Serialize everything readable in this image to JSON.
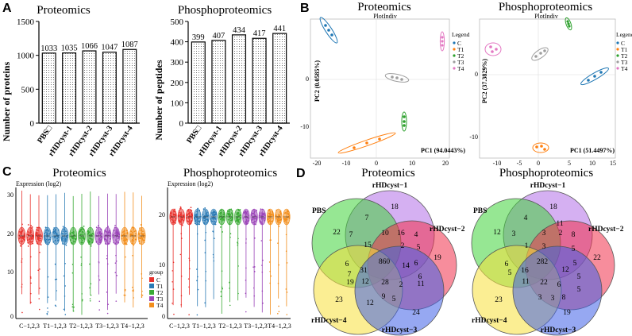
{
  "panels": {
    "A": "A",
    "B": "B",
    "C": "C",
    "D": "D"
  },
  "panelA": {
    "left": {
      "title": "Proteomics",
      "ylabel": "Number of proteins",
      "yticks": [
        "0",
        "500",
        "1000",
        "1500"
      ],
      "categories": [
        "PBS□",
        "rHDcyst-1",
        "rHDcyst-2",
        "rHDcyst-3",
        "rHDcyst-4"
      ],
      "values": [
        1033,
        1035,
        1066,
        1047,
        1087
      ],
      "ymax": 1500
    },
    "right": {
      "title": "Phosphoproteomics",
      "ylabel": "Number of peptides",
      "yticks": [
        "0",
        "100",
        "200",
        "300",
        "400",
        "500"
      ],
      "categories": [
        "PBS□",
        "rHDcyst-1",
        "rHDcyst-2",
        "rHDcyst-3",
        "rHDcyst-4"
      ],
      "values": [
        399,
        407,
        434,
        417,
        441
      ],
      "ymax": 500
    }
  },
  "panelB": {
    "left": {
      "title": "Proteomics",
      "subtitle": "PlotIndiv",
      "xlabel": "PC1 (94.0443%)",
      "ylabel": "PC2 (0.0585%)",
      "xticks": [
        "-20",
        "-10",
        "0",
        "10",
        "20"
      ],
      "yticks": [
        "0",
        "-10"
      ],
      "legend_title": "Legend",
      "legend": [
        "C",
        "T1",
        "T2",
        "T3",
        "T4"
      ]
    },
    "right": {
      "title": "Phosphoproteomics",
      "subtitle": "PlotIndiv",
      "xlabel": "PC1 (51.4497%)",
      "ylabel": "PC2 (37.3829%)",
      "xticks": [
        "-10",
        "-5",
        "0",
        "5",
        "10",
        "15"
      ],
      "yticks": [
        "0",
        "-10"
      ],
      "legend_title": "Legend",
      "legend": [
        "C",
        "T1",
        "T2",
        "T3",
        "T4"
      ]
    },
    "colors": {
      "C": "#1f77b4",
      "T1": "#ff7f0e",
      "T2": "#2ca02c",
      "T3": "#9e9e9e",
      "T4": "#e377c2"
    }
  },
  "panelC": {
    "left": {
      "title": "Proteomics",
      "ylabel": "Expression (log2)",
      "yticks": [
        "0",
        "10",
        "20",
        "30"
      ],
      "xticks": [
        "C−1,2,3",
        "T1−1,2,3",
        "T2−1,2,3",
        "T3−1,2,3",
        "T4−1,2,3"
      ],
      "legend_title": "group",
      "legend": [
        "C",
        "T1",
        "T2",
        "T3",
        "T4"
      ]
    },
    "right": {
      "title": "Phosphoproteomics",
      "ylabel": "Expression (log2)",
      "yticks": [
        "0",
        "10",
        "20"
      ],
      "xticks": [
        "C−1,2,3",
        "T1−1,2,3",
        "T2−1,2,3",
        "T3−1,2,3",
        "T4−1,2,3"
      ]
    },
    "colors": [
      "#e8312c",
      "#2c7bb6",
      "#3aaa35",
      "#9b45b8",
      "#f28e1c"
    ]
  },
  "panelD": {
    "left": {
      "title": "Proteomics",
      "sets": [
        "rHDcyst−1",
        "PBS",
        "rHDcyst−2",
        "rHDcyst−4",
        "rHDcyst−3"
      ],
      "numbers": [
        "18",
        "22",
        "19",
        "23",
        "24",
        "7",
        "10",
        "16",
        "4",
        "7",
        "15",
        "2",
        "5",
        "6",
        "860",
        "6",
        "7",
        "14",
        "31",
        "6",
        "19",
        "12",
        "28",
        "2",
        "11",
        "12",
        "9",
        "5"
      ]
    },
    "right": {
      "title": "Phosphoproteomics",
      "sets": [
        "rHDcyst−1",
        "PBS",
        "rHDcyst−2",
        "rHDcyst−4",
        "rHDcyst−3"
      ],
      "numbers": [
        "18",
        "12",
        "22",
        "23",
        "19",
        "4",
        "3",
        "11",
        "3",
        "1",
        "3",
        "8",
        "2",
        "6",
        "282",
        "5",
        "5",
        "12",
        "16",
        "5",
        "11",
        "22",
        "6",
        "3",
        "5",
        "5",
        "8",
        "3"
      ]
    }
  }
}
